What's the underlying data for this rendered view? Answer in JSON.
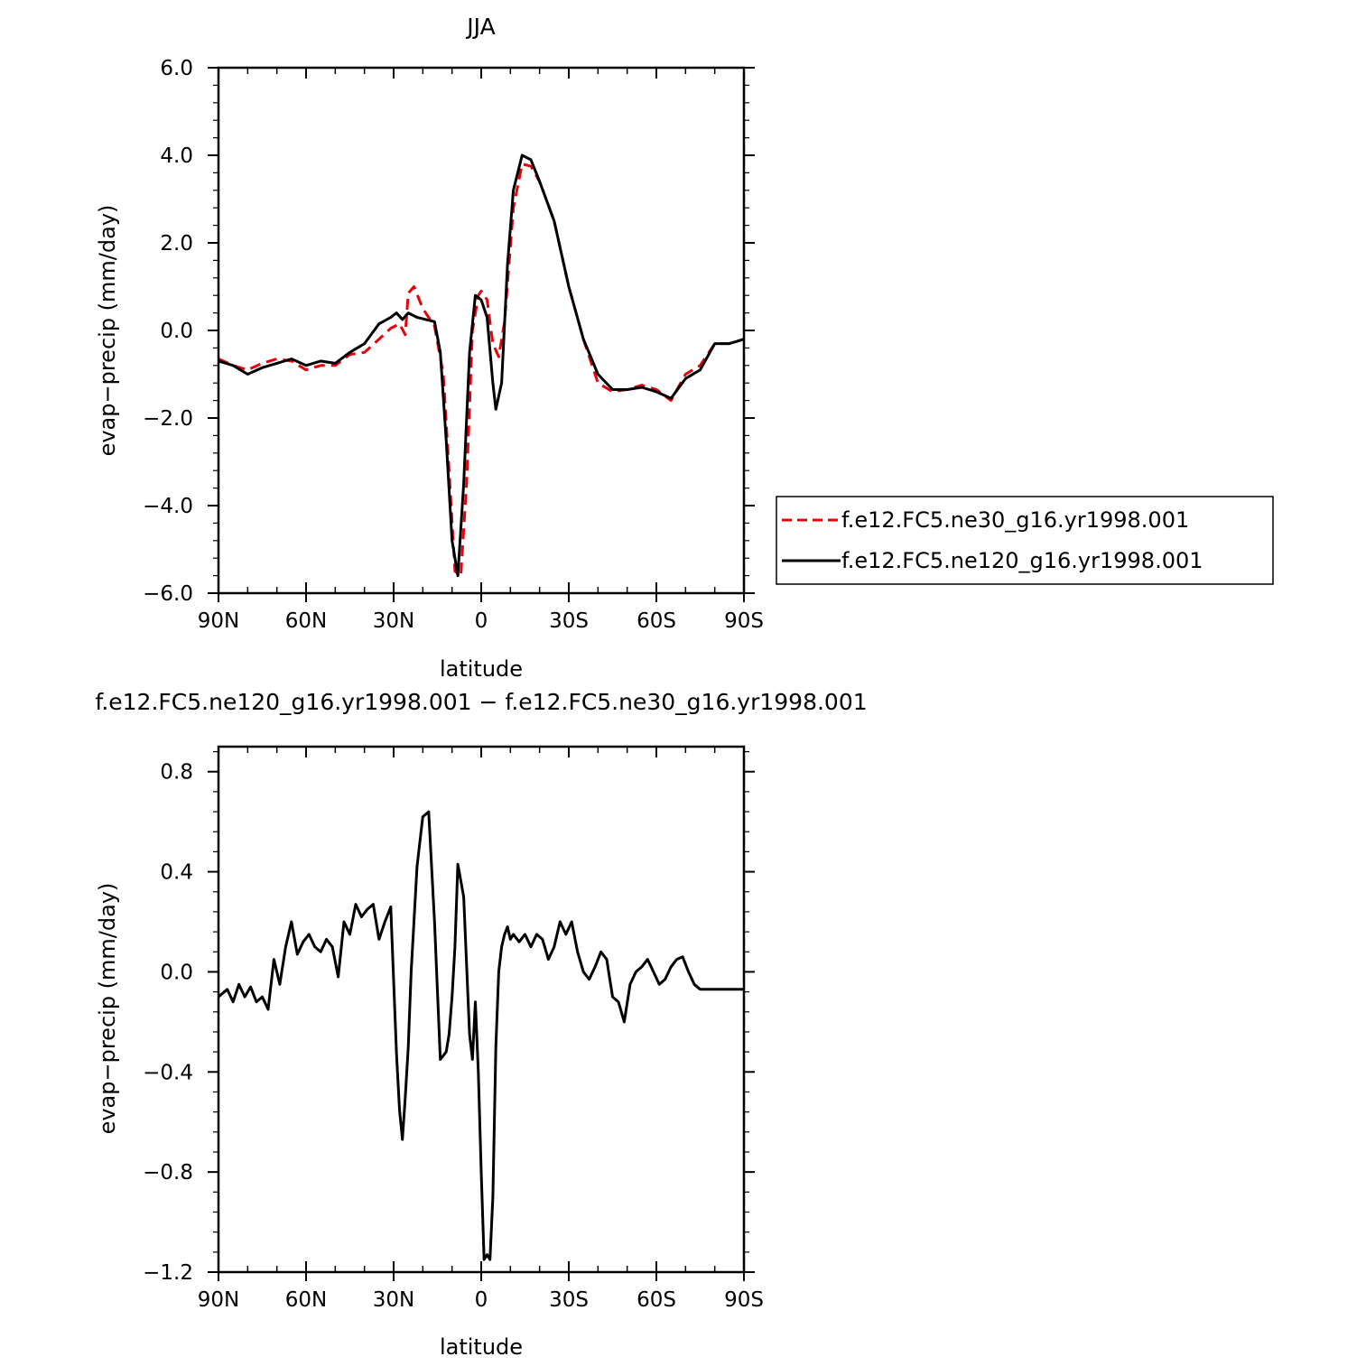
{
  "chart_data": [
    {
      "type": "line",
      "title": "JJA",
      "xlabel": "latitude",
      "ylabel": "evap−precip (mm/day)",
      "xlim": [
        -90,
        90
      ],
      "ylim": [
        -6,
        6
      ],
      "xticks": [
        {
          "value": -90,
          "label": "90N"
        },
        {
          "value": -60,
          "label": "60N"
        },
        {
          "value": -30,
          "label": "30N"
        },
        {
          "value": 0,
          "label": "0"
        },
        {
          "value": 30,
          "label": "30S"
        },
        {
          "value": 60,
          "label": "60S"
        },
        {
          "value": 90,
          "label": "90S"
        }
      ],
      "yticks": [
        {
          "value": 6,
          "label": "6.0"
        },
        {
          "value": 4,
          "label": "4.0"
        },
        {
          "value": 2,
          "label": "2.0"
        },
        {
          "value": 0,
          "label": "0.0"
        },
        {
          "value": -2,
          "label": "−2.0"
        },
        {
          "value": -4,
          "label": "−4.0"
        },
        {
          "value": -6,
          "label": "−6.0"
        }
      ],
      "legend_position": "right",
      "series": [
        {
          "name": "f.e12.FC5.ne30_g16.yr1998.001",
          "color": "#e8000b",
          "dash": "dashed",
          "x": [
            -90,
            -85,
            -80,
            -75,
            -70,
            -65,
            -60,
            -55,
            -50,
            -45,
            -40,
            -35,
            -31,
            -28,
            -26,
            -25,
            -23,
            -20,
            -16,
            -13,
            -11,
            -9,
            -7,
            -5,
            -3,
            -1,
            0,
            2,
            4,
            6,
            8,
            11,
            14,
            17,
            20,
            25,
            30,
            35,
            40,
            45,
            50,
            55,
            60,
            65,
            70,
            75,
            80,
            85,
            90
          ],
          "y": [
            -0.65,
            -0.8,
            -0.9,
            -0.75,
            -0.65,
            -0.7,
            -0.9,
            -0.8,
            -0.8,
            -0.55,
            -0.5,
            -0.2,
            0.05,
            0.15,
            -0.1,
            0.85,
            1.0,
            0.5,
            0.1,
            -1.0,
            -3.2,
            -5.5,
            -5.6,
            -3.5,
            0.0,
            0.8,
            0.9,
            0.7,
            -0.3,
            -0.6,
            0.2,
            2.8,
            3.8,
            3.75,
            3.4,
            2.5,
            1.0,
            -0.2,
            -1.2,
            -1.4,
            -1.35,
            -1.25,
            -1.35,
            -1.6,
            -1.0,
            -0.8,
            -0.3,
            -0.3,
            -0.2
          ]
        },
        {
          "name": "f.e12.FC5.ne120_g16.yr1998.001",
          "color": "#000000",
          "dash": "solid",
          "x": [
            -90,
            -85,
            -80,
            -75,
            -70,
            -65,
            -60,
            -55,
            -50,
            -45,
            -40,
            -35,
            -31,
            -29,
            -27,
            -25,
            -22,
            -19,
            -16,
            -14,
            -12,
            -10,
            -8,
            -6,
            -4,
            -2,
            0,
            2,
            4,
            5,
            7,
            9,
            11,
            14,
            17,
            20,
            25,
            30,
            35,
            40,
            45,
            50,
            55,
            60,
            65,
            70,
            75,
            80,
            85,
            90
          ],
          "y": [
            -0.7,
            -0.8,
            -1.0,
            -0.85,
            -0.75,
            -0.65,
            -0.8,
            -0.7,
            -0.75,
            -0.5,
            -0.3,
            0.15,
            0.3,
            0.4,
            0.25,
            0.4,
            0.3,
            0.25,
            0.2,
            -0.5,
            -2.5,
            -4.8,
            -5.6,
            -3.5,
            -0.5,
            0.8,
            0.7,
            0.3,
            -1.2,
            -1.8,
            -1.2,
            1.5,
            3.2,
            4.0,
            3.9,
            3.4,
            2.5,
            1.0,
            -0.2,
            -1.0,
            -1.35,
            -1.35,
            -1.3,
            -1.4,
            -1.55,
            -1.1,
            -0.9,
            -0.3,
            -0.3,
            -0.2
          ]
        }
      ]
    },
    {
      "type": "line",
      "title": "f.e12.FC5.ne120_g16.yr1998.001 − f.e12.FC5.ne30_g16.yr1998.001",
      "xlabel": "latitude",
      "ylabel": "evap−precip (mm/day)",
      "xlim": [
        -90,
        90
      ],
      "ylim": [
        -1.2,
        0.9
      ],
      "xticks": [
        {
          "value": -90,
          "label": "90N"
        },
        {
          "value": -60,
          "label": "60N"
        },
        {
          "value": -30,
          "label": "30N"
        },
        {
          "value": 0,
          "label": "0"
        },
        {
          "value": 30,
          "label": "30S"
        },
        {
          "value": 60,
          "label": "60S"
        },
        {
          "value": 90,
          "label": "90S"
        }
      ],
      "yticks": [
        {
          "value": 0.8,
          "label": "0.8"
        },
        {
          "value": 0.4,
          "label": "0.4"
        },
        {
          "value": 0.0,
          "label": "0.0"
        },
        {
          "value": -0.4,
          "label": "−0.4"
        },
        {
          "value": -0.8,
          "label": "−0.8"
        },
        {
          "value": -1.2,
          "label": "−1.2"
        }
      ],
      "series": [
        {
          "color": "#000000",
          "dash": "solid",
          "x": [
            -90,
            -87,
            -85,
            -83,
            -81,
            -79,
            -77,
            -75,
            -73,
            -71,
            -69,
            -67,
            -65,
            -63,
            -61,
            -59,
            -57,
            -55,
            -53,
            -51,
            -49,
            -47,
            -45,
            -43,
            -41,
            -39,
            -37,
            -35,
            -33,
            -31,
            -29,
            -28,
            -27,
            -26,
            -25,
            -24,
            -22,
            -20,
            -18,
            -16,
            -14,
            -12,
            -11,
            -10,
            -9,
            -8,
            -6,
            -4,
            -3,
            -2,
            -1,
            0,
            1,
            2,
            3,
            4,
            5,
            6,
            7,
            8,
            9,
            10,
            11,
            13,
            15,
            17,
            19,
            21,
            23,
            25,
            27,
            29,
            31,
            33,
            35,
            37,
            39,
            41,
            43,
            45,
            47,
            49,
            51,
            53,
            55,
            57,
            59,
            61,
            63,
            65,
            67,
            69,
            71,
            73,
            75,
            77,
            79,
            81,
            83,
            85,
            87,
            89,
            90
          ],
          "y": [
            -0.1,
            -0.07,
            -0.12,
            -0.05,
            -0.1,
            -0.06,
            -0.12,
            -0.1,
            -0.15,
            0.05,
            -0.05,
            0.1,
            0.2,
            0.07,
            0.12,
            0.15,
            0.1,
            0.08,
            0.13,
            0.1,
            -0.02,
            0.2,
            0.15,
            0.27,
            0.22,
            0.25,
            0.27,
            0.13,
            0.2,
            0.26,
            -0.33,
            -0.55,
            -0.67,
            -0.5,
            -0.3,
            0.0,
            0.42,
            0.62,
            0.64,
            0.2,
            -0.35,
            -0.32,
            -0.25,
            -0.1,
            0.1,
            0.43,
            0.3,
            -0.25,
            -0.35,
            -0.12,
            -0.4,
            -0.8,
            -1.15,
            -1.13,
            -1.15,
            -0.9,
            -0.3,
            0.0,
            0.1,
            0.15,
            0.18,
            0.13,
            0.15,
            0.12,
            0.15,
            0.1,
            0.15,
            0.13,
            0.05,
            0.1,
            0.2,
            0.15,
            0.2,
            0.08,
            0.0,
            -0.03,
            0.02,
            0.08,
            0.05,
            -0.1,
            -0.12,
            -0.2,
            -0.05,
            0.0,
            0.02,
            0.05,
            0.0,
            -0.05,
            -0.03,
            0.02,
            0.05,
            0.06,
            0.0,
            -0.05,
            -0.07,
            -0.07,
            -0.07,
            -0.07,
            -0.07,
            -0.07,
            -0.07,
            -0.07,
            -0.07
          ]
        }
      ]
    }
  ]
}
